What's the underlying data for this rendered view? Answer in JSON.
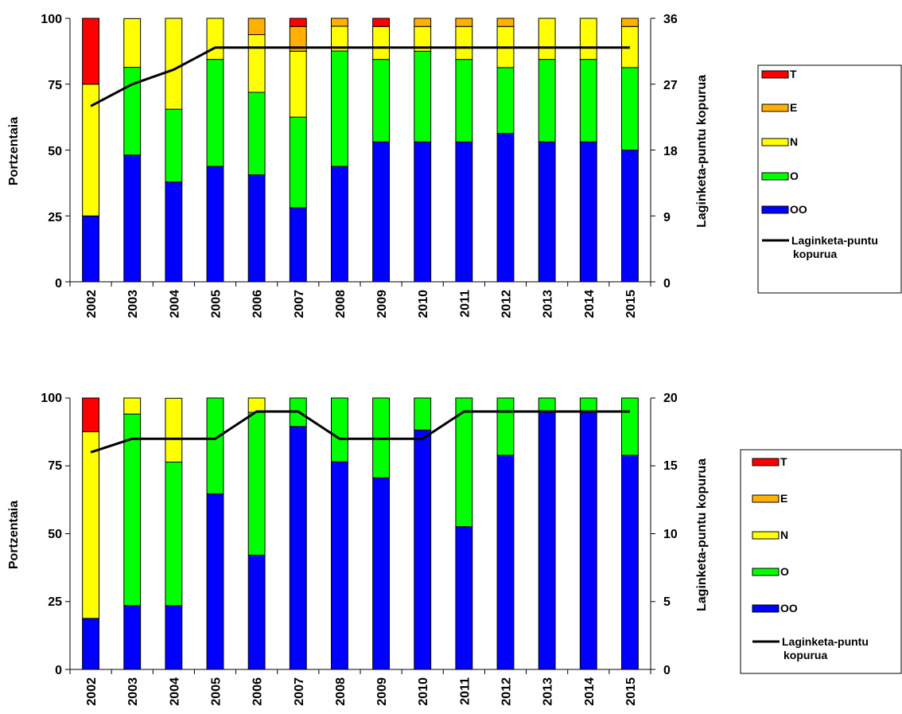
{
  "legend_items": [
    {
      "key": "T",
      "color": "#ff0000"
    },
    {
      "key": "E",
      "color": "#ffb000"
    },
    {
      "key": "N",
      "color": "#ffff00"
    },
    {
      "key": "O",
      "color": "#00ff00"
    },
    {
      "key": "OO",
      "color": "#0000ff"
    }
  ],
  "line_color": "#000000",
  "chart_data": [
    {
      "type": "bar",
      "stacked": true,
      "ylabel": "Portzentaia",
      "y2label": "Laginketa-puntu kopurua",
      "ylim": [
        0,
        100
      ],
      "y2lim": [
        0,
        36
      ],
      "yticks": [
        "0",
        "25",
        "50",
        "75",
        "100"
      ],
      "y2ticks": [
        "0",
        "9",
        "18",
        "27",
        "36"
      ],
      "categories": [
        "2002",
        "2003",
        "2004",
        "2005",
        "2006",
        "2007",
        "2008",
        "2009",
        "2010",
        "2011",
        "2012",
        "2013",
        "2014",
        "2015"
      ],
      "series": [
        {
          "name": "OO",
          "values": [
            25,
            48.1,
            37.9,
            43.8,
            40.6,
            28.1,
            43.8,
            53.1,
            53.1,
            53.1,
            56.3,
            53.1,
            53.1,
            50
          ]
        },
        {
          "name": "O",
          "values": [
            0,
            33.3,
            27.6,
            40.6,
            31.3,
            34.4,
            43.8,
            31.3,
            34.4,
            31.3,
            25,
            31.3,
            31.3,
            31.3
          ]
        },
        {
          "name": "N",
          "values": [
            50,
            18.5,
            34.5,
            15.6,
            21.9,
            25,
            9.4,
            12.5,
            9.4,
            12.5,
            15.6,
            15.6,
            15.6,
            15.6
          ]
        },
        {
          "name": "E",
          "values": [
            0,
            0,
            0,
            0,
            6.3,
            9.4,
            3.1,
            0,
            3.1,
            3.1,
            3.1,
            0,
            0,
            3.1
          ]
        },
        {
          "name": "T",
          "values": [
            25,
            0,
            0,
            0,
            0,
            3.1,
            0,
            3.1,
            0,
            0,
            0,
            0,
            0,
            0
          ]
        }
      ],
      "line": {
        "name": "Laginketa-puntu kopurua",
        "values": [
          24,
          27,
          29,
          32,
          32,
          32,
          32,
          32,
          32,
          32,
          32,
          32,
          32,
          32
        ]
      },
      "legend": [
        "T",
        "E",
        "N",
        "O",
        "OO",
        "Laginketa-puntu kopurua"
      ],
      "legend_position": "right"
    },
    {
      "type": "bar",
      "stacked": true,
      "ylabel": "Portzentaia",
      "y2label": "Laginketa-puntu kopurua",
      "ylim": [
        0,
        100
      ],
      "y2lim": [
        0,
        20
      ],
      "yticks": [
        "0",
        "25",
        "50",
        "75",
        "100"
      ],
      "y2ticks": [
        "0",
        "5",
        "10",
        "15",
        "20"
      ],
      "categories": [
        "2002",
        "2003",
        "2004",
        "2005",
        "2006",
        "2007",
        "2008",
        "2009",
        "2010",
        "2011",
        "2012",
        "2013",
        "2014",
        "2015"
      ],
      "series": [
        {
          "name": "OO",
          "values": [
            18.8,
            23.5,
            23.5,
            64.7,
            42.1,
            89.5,
            76.5,
            70.6,
            88.2,
            52.6,
            78.9,
            94.7,
            94.7,
            78.9
          ]
        },
        {
          "name": "O",
          "values": [
            0,
            70.6,
            52.9,
            35.3,
            52.6,
            10.5,
            23.5,
            29.4,
            11.8,
            47.4,
            21.1,
            5.3,
            5.3,
            21.1
          ]
        },
        {
          "name": "N",
          "values": [
            68.8,
            5.9,
            23.5,
            0,
            5.3,
            0,
            0,
            0,
            0,
            0,
            0,
            0,
            0,
            0
          ]
        },
        {
          "name": "E",
          "values": [
            0,
            0,
            0,
            0,
            0,
            0,
            0,
            0,
            0,
            0,
            0,
            0,
            0,
            0
          ]
        },
        {
          "name": "T",
          "values": [
            12.5,
            0,
            0,
            0,
            0,
            0,
            0,
            0,
            0,
            0,
            0,
            0,
            0,
            0
          ]
        }
      ],
      "line": {
        "name": "Laginketa-puntu kopurua",
        "values": [
          16,
          17,
          17,
          17,
          19,
          19,
          17,
          17,
          17,
          19,
          19,
          19,
          19,
          19
        ]
      },
      "legend": [
        "T",
        "E",
        "N",
        "O",
        "OO",
        "Laginketa-puntu kopurua"
      ],
      "legend_position": "right"
    }
  ]
}
